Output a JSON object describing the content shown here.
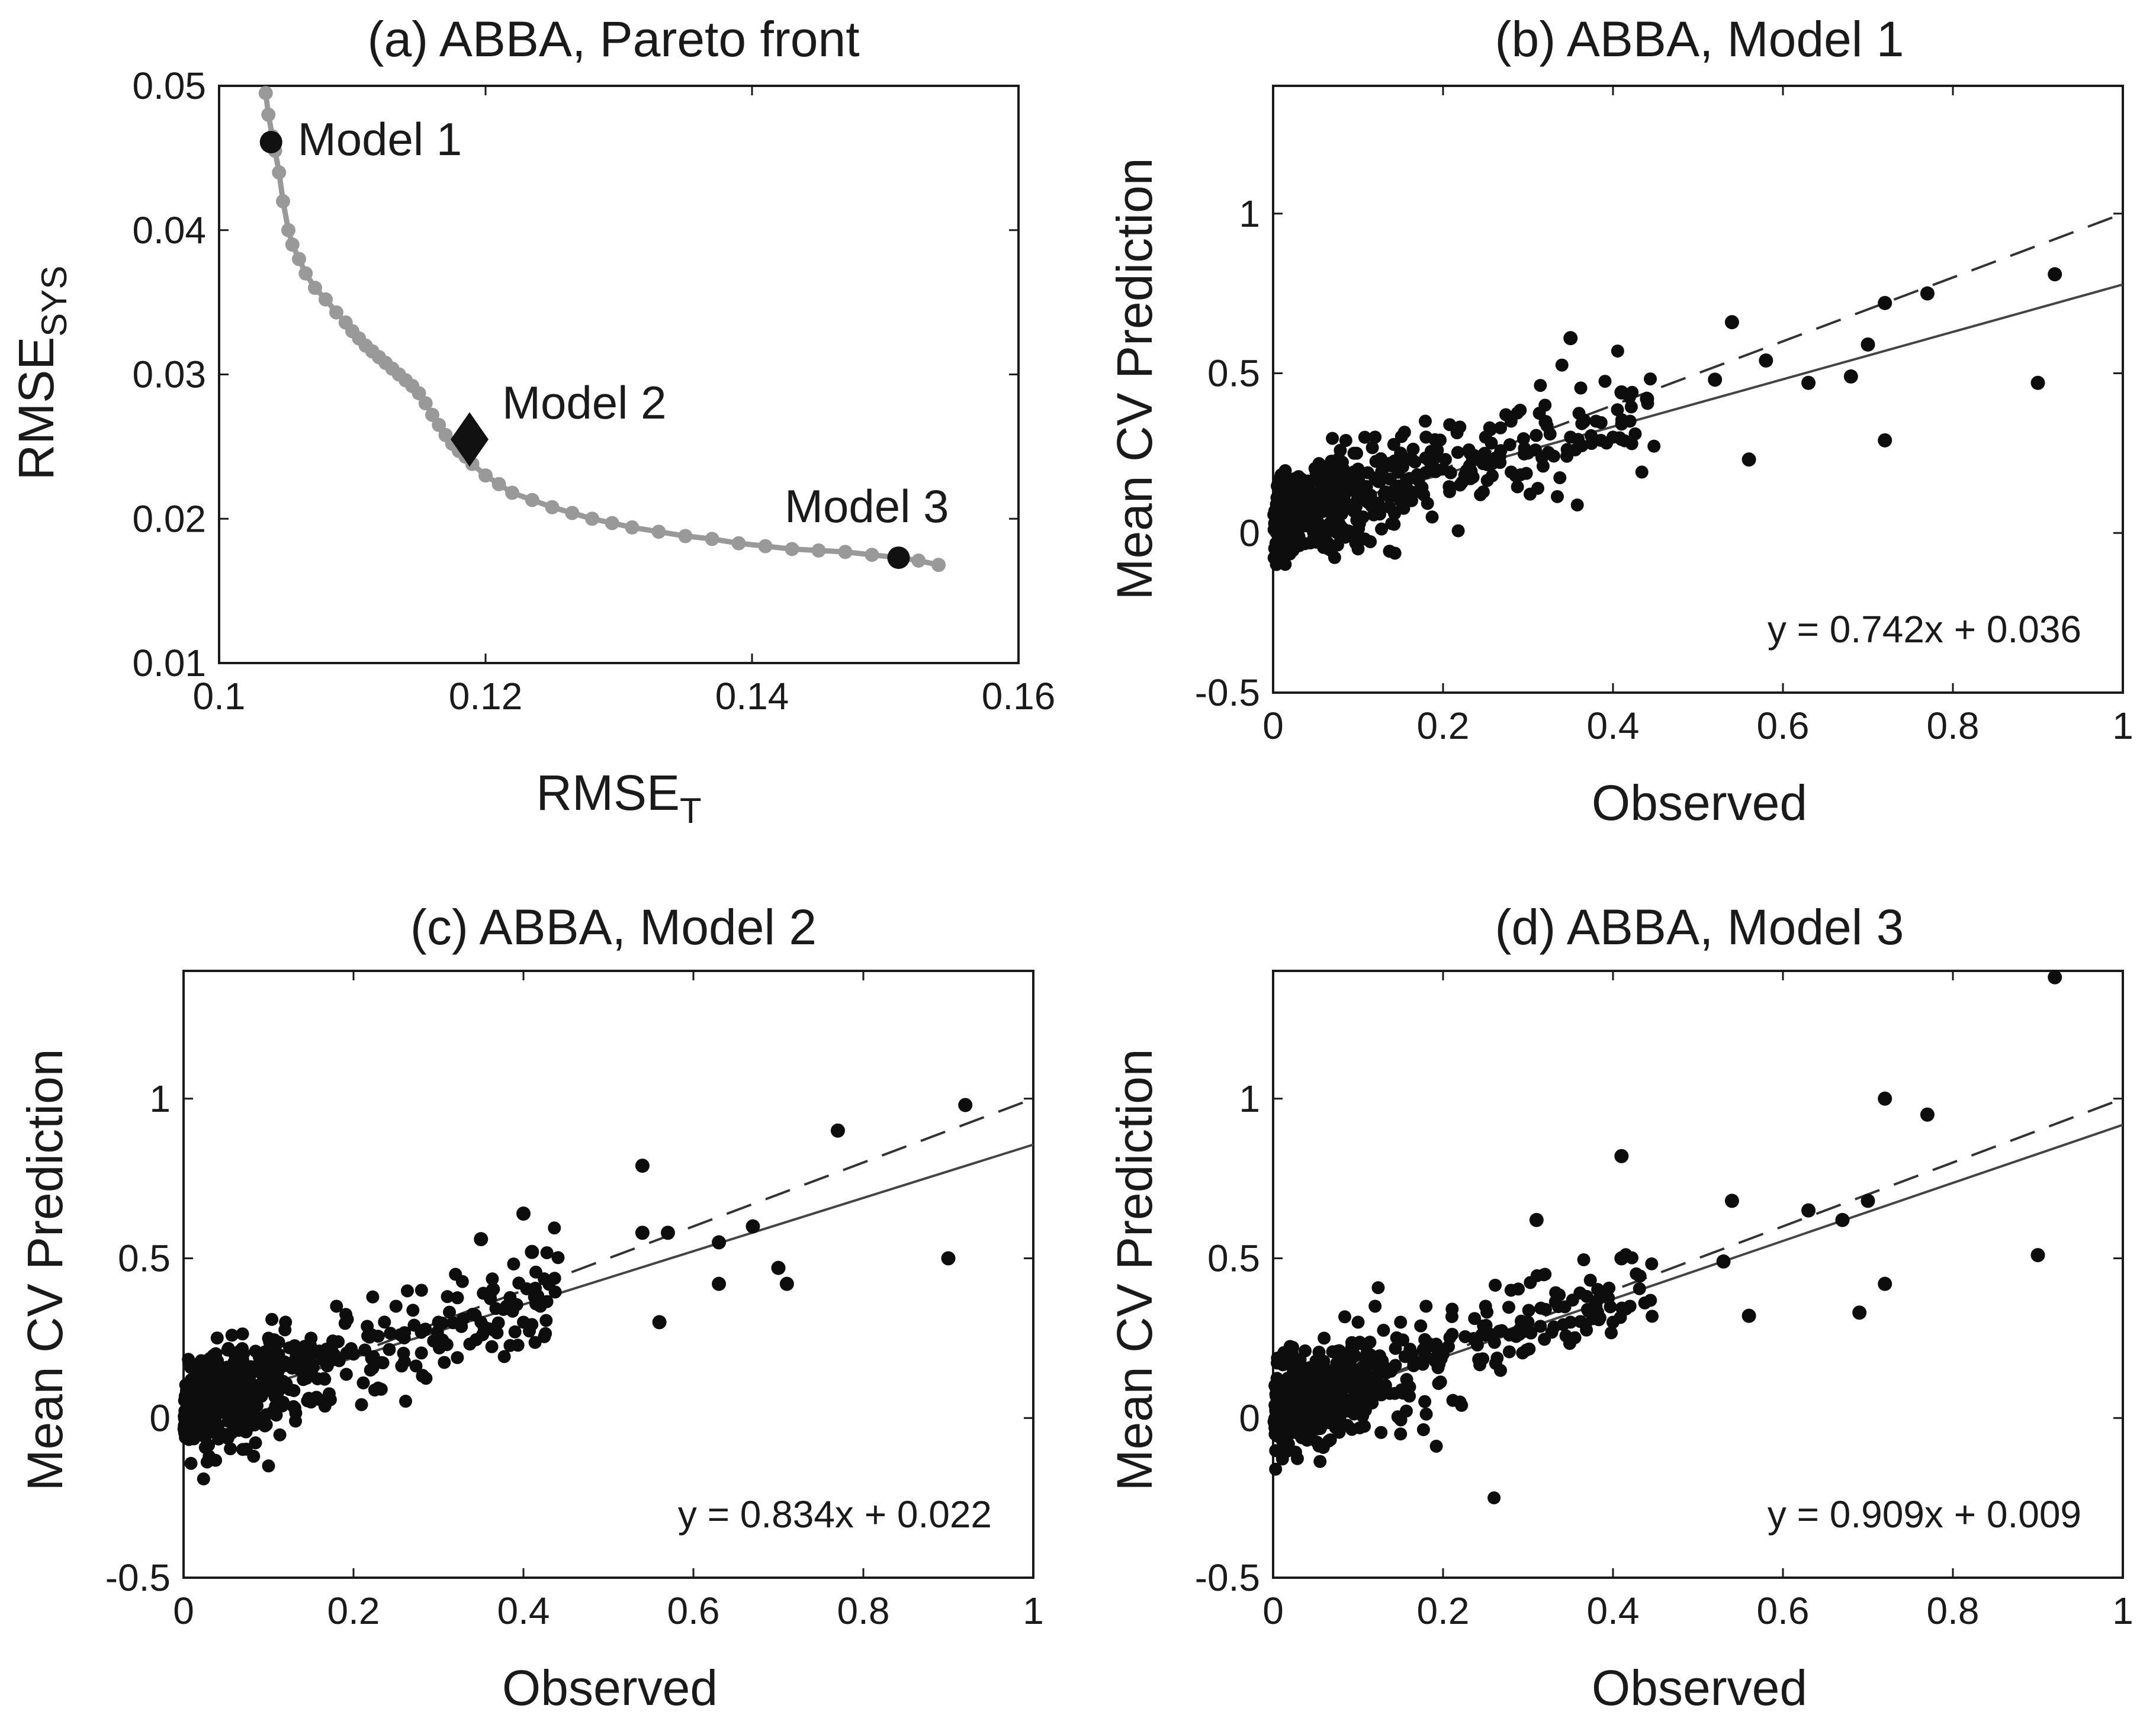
{
  "chart_data": [
    {
      "id": "a",
      "type": "line",
      "title": "(a) ABBA, Pareto front",
      "xlabel": "RMSE",
      "xlabel_sub": "T",
      "ylabel": "RMSE",
      "ylabel_sub": "SYS",
      "xlim": [
        0.1,
        0.16
      ],
      "ylim": [
        0.01,
        0.05
      ],
      "xticks": [
        0.1,
        0.12,
        0.14,
        0.16
      ],
      "xtick_labels": [
        "0.1",
        "0.12",
        "0.14",
        "0.16"
      ],
      "yticks": [
        0.01,
        0.02,
        0.03,
        0.04,
        0.05
      ],
      "ytick_labels": [
        "0.01",
        "0.02",
        "0.03",
        "0.04",
        "0.05"
      ],
      "line_color": "#999999",
      "pareto_x": [
        0.1035,
        0.1037,
        0.104,
        0.1042,
        0.1045,
        0.1048,
        0.1052,
        0.1055,
        0.106,
        0.1065,
        0.1072,
        0.108,
        0.1088,
        0.1095,
        0.11,
        0.1105,
        0.111,
        0.1115,
        0.112,
        0.1125,
        0.113,
        0.1135,
        0.114,
        0.1145,
        0.115,
        0.1155,
        0.116,
        0.1165,
        0.117,
        0.1175,
        0.118,
        0.1185,
        0.119,
        0.12,
        0.121,
        0.122,
        0.1235,
        0.125,
        0.1265,
        0.128,
        0.1295,
        0.131,
        0.133,
        0.135,
        0.137,
        0.139,
        0.141,
        0.143,
        0.145,
        0.147,
        0.149,
        0.151,
        0.1525,
        0.154
      ],
      "pareto_y": [
        0.0495,
        0.048,
        0.0465,
        0.0455,
        0.044,
        0.042,
        0.04,
        0.039,
        0.038,
        0.037,
        0.036,
        0.0352,
        0.0343,
        0.0336,
        0.033,
        0.0325,
        0.032,
        0.0316,
        0.0312,
        0.0308,
        0.0304,
        0.03,
        0.0296,
        0.0292,
        0.0287,
        0.028,
        0.0272,
        0.0265,
        0.0258,
        0.0252,
        0.0247,
        0.0243,
        0.0238,
        0.023,
        0.0224,
        0.0218,
        0.0213,
        0.0208,
        0.0204,
        0.02,
        0.0197,
        0.0194,
        0.0191,
        0.0188,
        0.0186,
        0.0183,
        0.0181,
        0.0179,
        0.0178,
        0.0177,
        0.0175,
        0.0173,
        0.0171,
        0.0168
      ],
      "markers": [
        {
          "name": "Model 1",
          "x": 0.1039,
          "y": 0.0461,
          "shape": "circle"
        },
        {
          "name": "Model 2",
          "x": 0.1188,
          "y": 0.0255,
          "shape": "diamond"
        },
        {
          "name": "Model 3",
          "x": 0.151,
          "y": 0.0173,
          "shape": "circle"
        }
      ]
    },
    {
      "id": "b",
      "type": "scatter",
      "title": "(b) ABBA, Model 1",
      "xlabel": "Observed",
      "ylabel": "Mean CV Prediction",
      "xlim": [
        0,
        1
      ],
      "ylim": [
        -0.5,
        1.4
      ],
      "xticks": [
        0,
        0.2,
        0.4,
        0.6,
        0.8,
        1
      ],
      "xtick_labels": [
        "0",
        "0.2",
        "0.4",
        "0.6",
        "0.8",
        "1"
      ],
      "yticks": [
        -0.5,
        0,
        0.5,
        1
      ],
      "ytick_labels": [
        "-0.5",
        "0",
        "0.5",
        "1"
      ],
      "fit": {
        "slope": 0.742,
        "intercept": 0.036
      },
      "equation": "y = 0.742x + 0.036",
      "cluster_points": [
        [
          0.03,
          0.1
        ],
        [
          0.06,
          0.2
        ],
        [
          0.1,
          0.2
        ],
        [
          0.12,
          0.3
        ],
        [
          0.15,
          0.25
        ],
        [
          0.18,
          0.3
        ],
        [
          0.2,
          0.2
        ],
        [
          0.25,
          0.3
        ],
        [
          0.28,
          0.35
        ],
        [
          0.3,
          0.25
        ],
        [
          0.32,
          0.4
        ],
        [
          0.35,
          0.3
        ],
        [
          0.38,
          0.35
        ],
        [
          0.4,
          0.3
        ],
        [
          0.42,
          0.35
        ],
        [
          0.05,
          0.05
        ],
        [
          0.08,
          0.15
        ],
        [
          0.22,
          0.15
        ],
        [
          0.1,
          -0.05
        ],
        [
          0.15,
          0.1
        ]
      ],
      "outliers": [
        [
          0.92,
          0.81
        ],
        [
          0.9,
          0.47
        ],
        [
          0.77,
          0.75
        ],
        [
          0.72,
          0.72
        ],
        [
          0.72,
          0.29
        ],
        [
          0.7,
          0.59
        ],
        [
          0.68,
          0.49
        ],
        [
          0.63,
          0.47
        ],
        [
          0.58,
          0.54
        ],
        [
          0.56,
          0.23
        ],
        [
          0.54,
          0.66
        ],
        [
          0.52,
          0.48
        ],
        [
          0.35,
          0.61
        ],
        [
          0.41,
          0.44
        ],
        [
          0.44,
          0.42
        ]
      ]
    },
    {
      "id": "c",
      "type": "scatter",
      "title": "(c) ABBA, Model 2",
      "xlabel": "Observed",
      "ylabel": "Mean CV Prediction",
      "xlim": [
        0,
        1
      ],
      "ylim": [
        -0.5,
        1.4
      ],
      "xticks": [
        0,
        0.2,
        0.4,
        0.6,
        0.8,
        1
      ],
      "xtick_labels": [
        "0",
        "0.2",
        "0.4",
        "0.6",
        "0.8",
        "1"
      ],
      "yticks": [
        -0.5,
        0,
        0.5,
        1
      ],
      "ytick_labels": [
        "-0.5",
        "0",
        "0.5",
        "1"
      ],
      "fit": {
        "slope": 0.834,
        "intercept": 0.022
      },
      "equation": "y = 0.834x + 0.022",
      "cluster_points": [
        [
          0.03,
          0.1
        ],
        [
          0.06,
          0.2
        ],
        [
          0.1,
          0.25
        ],
        [
          0.12,
          0.3
        ],
        [
          0.15,
          0.25
        ],
        [
          0.18,
          0.35
        ],
        [
          0.2,
          0.2
        ],
        [
          0.25,
          0.35
        ],
        [
          0.28,
          0.4
        ],
        [
          0.3,
          0.3
        ],
        [
          0.32,
          0.45
        ],
        [
          0.35,
          0.3
        ],
        [
          0.38,
          0.35
        ],
        [
          0.4,
          0.3
        ],
        [
          0.42,
          0.35
        ],
        [
          0.05,
          0.05
        ],
        [
          0.08,
          0.15
        ],
        [
          0.22,
          0.15
        ],
        [
          0.1,
          -0.15
        ],
        [
          0.15,
          0.05
        ]
      ],
      "outliers": [
        [
          0.92,
          0.98
        ],
        [
          0.9,
          0.5
        ],
        [
          0.77,
          0.9
        ],
        [
          0.71,
          0.42
        ],
        [
          0.7,
          0.47
        ],
        [
          0.67,
          0.6
        ],
        [
          0.63,
          0.55
        ],
        [
          0.63,
          0.42
        ],
        [
          0.57,
          0.58
        ],
        [
          0.56,
          0.3
        ],
        [
          0.54,
          0.79
        ],
        [
          0.54,
          0.58
        ],
        [
          0.4,
          0.64
        ],
        [
          0.41,
          0.52
        ],
        [
          0.35,
          0.56
        ]
      ]
    },
    {
      "id": "d",
      "type": "scatter",
      "title": "(d) ABBA, Model 3",
      "xlabel": "Observed",
      "ylabel": "Mean CV Prediction",
      "xlim": [
        0,
        1
      ],
      "ylim": [
        -0.5,
        1.4
      ],
      "xticks": [
        0,
        0.2,
        0.4,
        0.6,
        0.8,
        1
      ],
      "xtick_labels": [
        "0",
        "0.2",
        "0.4",
        "0.6",
        "0.8",
        "1"
      ],
      "yticks": [
        -0.5,
        0,
        0.5,
        1
      ],
      "ytick_labels": [
        "-0.5",
        "0",
        "0.5",
        "1"
      ],
      "fit": {
        "slope": 0.909,
        "intercept": 0.009
      },
      "equation": "y = 0.909x + 0.009",
      "cluster_points": [
        [
          0.03,
          0.1
        ],
        [
          0.06,
          0.25
        ],
        [
          0.1,
          0.3
        ],
        [
          0.12,
          0.35
        ],
        [
          0.15,
          0.3
        ],
        [
          0.18,
          0.35
        ],
        [
          0.2,
          0.2
        ],
        [
          0.25,
          0.35
        ],
        [
          0.28,
          0.4
        ],
        [
          0.3,
          0.3
        ],
        [
          0.32,
          0.45
        ],
        [
          0.35,
          0.3
        ],
        [
          0.38,
          0.35
        ],
        [
          0.4,
          0.3
        ],
        [
          0.42,
          0.35
        ],
        [
          0.05,
          0.05
        ],
        [
          0.08,
          0.15
        ],
        [
          0.22,
          0.05
        ],
        [
          0.26,
          -0.25
        ],
        [
          0.15,
          -0.05
        ]
      ],
      "outliers": [
        [
          0.92,
          1.38
        ],
        [
          0.9,
          0.51
        ],
        [
          0.77,
          0.95
        ],
        [
          0.72,
          1.0
        ],
        [
          0.72,
          0.42
        ],
        [
          0.7,
          0.68
        ],
        [
          0.69,
          0.33
        ],
        [
          0.67,
          0.62
        ],
        [
          0.63,
          0.65
        ],
        [
          0.56,
          0.32
        ],
        [
          0.54,
          0.68
        ],
        [
          0.53,
          0.49
        ],
        [
          0.41,
          0.82
        ],
        [
          0.41,
          0.5
        ],
        [
          0.31,
          0.62
        ]
      ]
    }
  ]
}
